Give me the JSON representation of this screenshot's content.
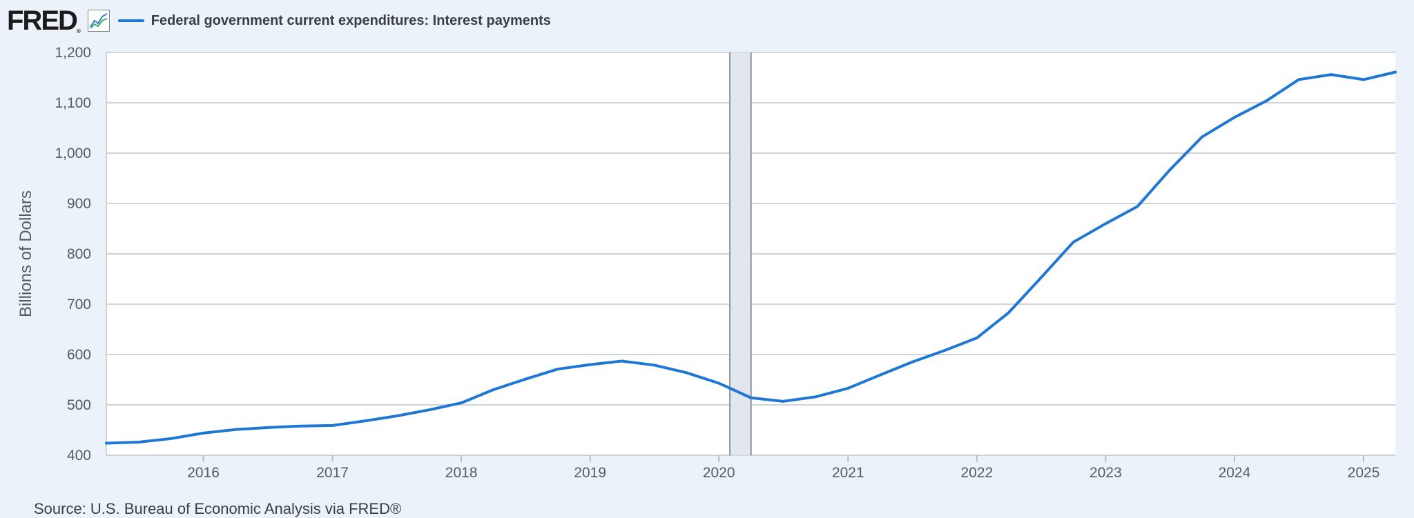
{
  "header": {
    "logo_text": "FRED",
    "logo_mark": "®",
    "chart_icon": "line-chart-icon",
    "series_color": "#1f77d4"
  },
  "source": "Source: U.S. Bureau of Economic Analysis via FRED®",
  "chart_data": {
    "type": "line",
    "title": "",
    "ylabel": "Billions of Dollars",
    "xlabel": "",
    "ylim": [
      400,
      1200
    ],
    "xlim": [
      "2015-04-01",
      "2025-04-01"
    ],
    "y_ticks": [
      "400",
      "500",
      "600",
      "700",
      "800",
      "900",
      "1,000",
      "1,100",
      "1,200"
    ],
    "x_ticks": [
      "2016",
      "2017",
      "2018",
      "2019",
      "2020",
      "2021",
      "2022",
      "2023",
      "2024",
      "2025"
    ],
    "grid": true,
    "recession": {
      "start": "2020-02-01",
      "end": "2020-04-01"
    },
    "series": [
      {
        "name": "Federal government current expenditures: Interest payments",
        "color": "#1f77d4",
        "x": [
          "2015-04-01",
          "2015-07-01",
          "2015-10-01",
          "2016-01-01",
          "2016-04-01",
          "2016-07-01",
          "2016-10-01",
          "2017-01-01",
          "2017-04-01",
          "2017-07-01",
          "2017-10-01",
          "2018-01-01",
          "2018-04-01",
          "2018-07-01",
          "2018-10-01",
          "2019-01-01",
          "2019-04-01",
          "2019-07-01",
          "2019-10-01",
          "2020-01-01",
          "2020-04-01",
          "2020-07-01",
          "2020-10-01",
          "2021-01-01",
          "2021-04-01",
          "2021-07-01",
          "2021-10-01",
          "2022-01-01",
          "2022-04-01",
          "2022-07-01",
          "2022-10-01",
          "2023-01-01",
          "2023-04-01",
          "2023-07-01",
          "2023-10-01",
          "2024-01-01",
          "2024-04-01",
          "2024-07-01",
          "2024-10-01",
          "2025-01-01",
          "2025-04-01"
        ],
        "values": [
          424,
          426,
          433,
          444,
          451,
          455,
          458,
          459,
          468,
          478,
          490,
          504,
          530,
          551,
          571,
          580,
          587,
          579,
          564,
          543,
          514,
          507,
          516,
          533,
          559,
          585,
          608,
          633,
          683,
          752,
          823,
          860,
          894,
          966,
          1032,
          1071,
          1104,
          1146,
          1156,
          1146,
          1161
        ]
      }
    ]
  }
}
